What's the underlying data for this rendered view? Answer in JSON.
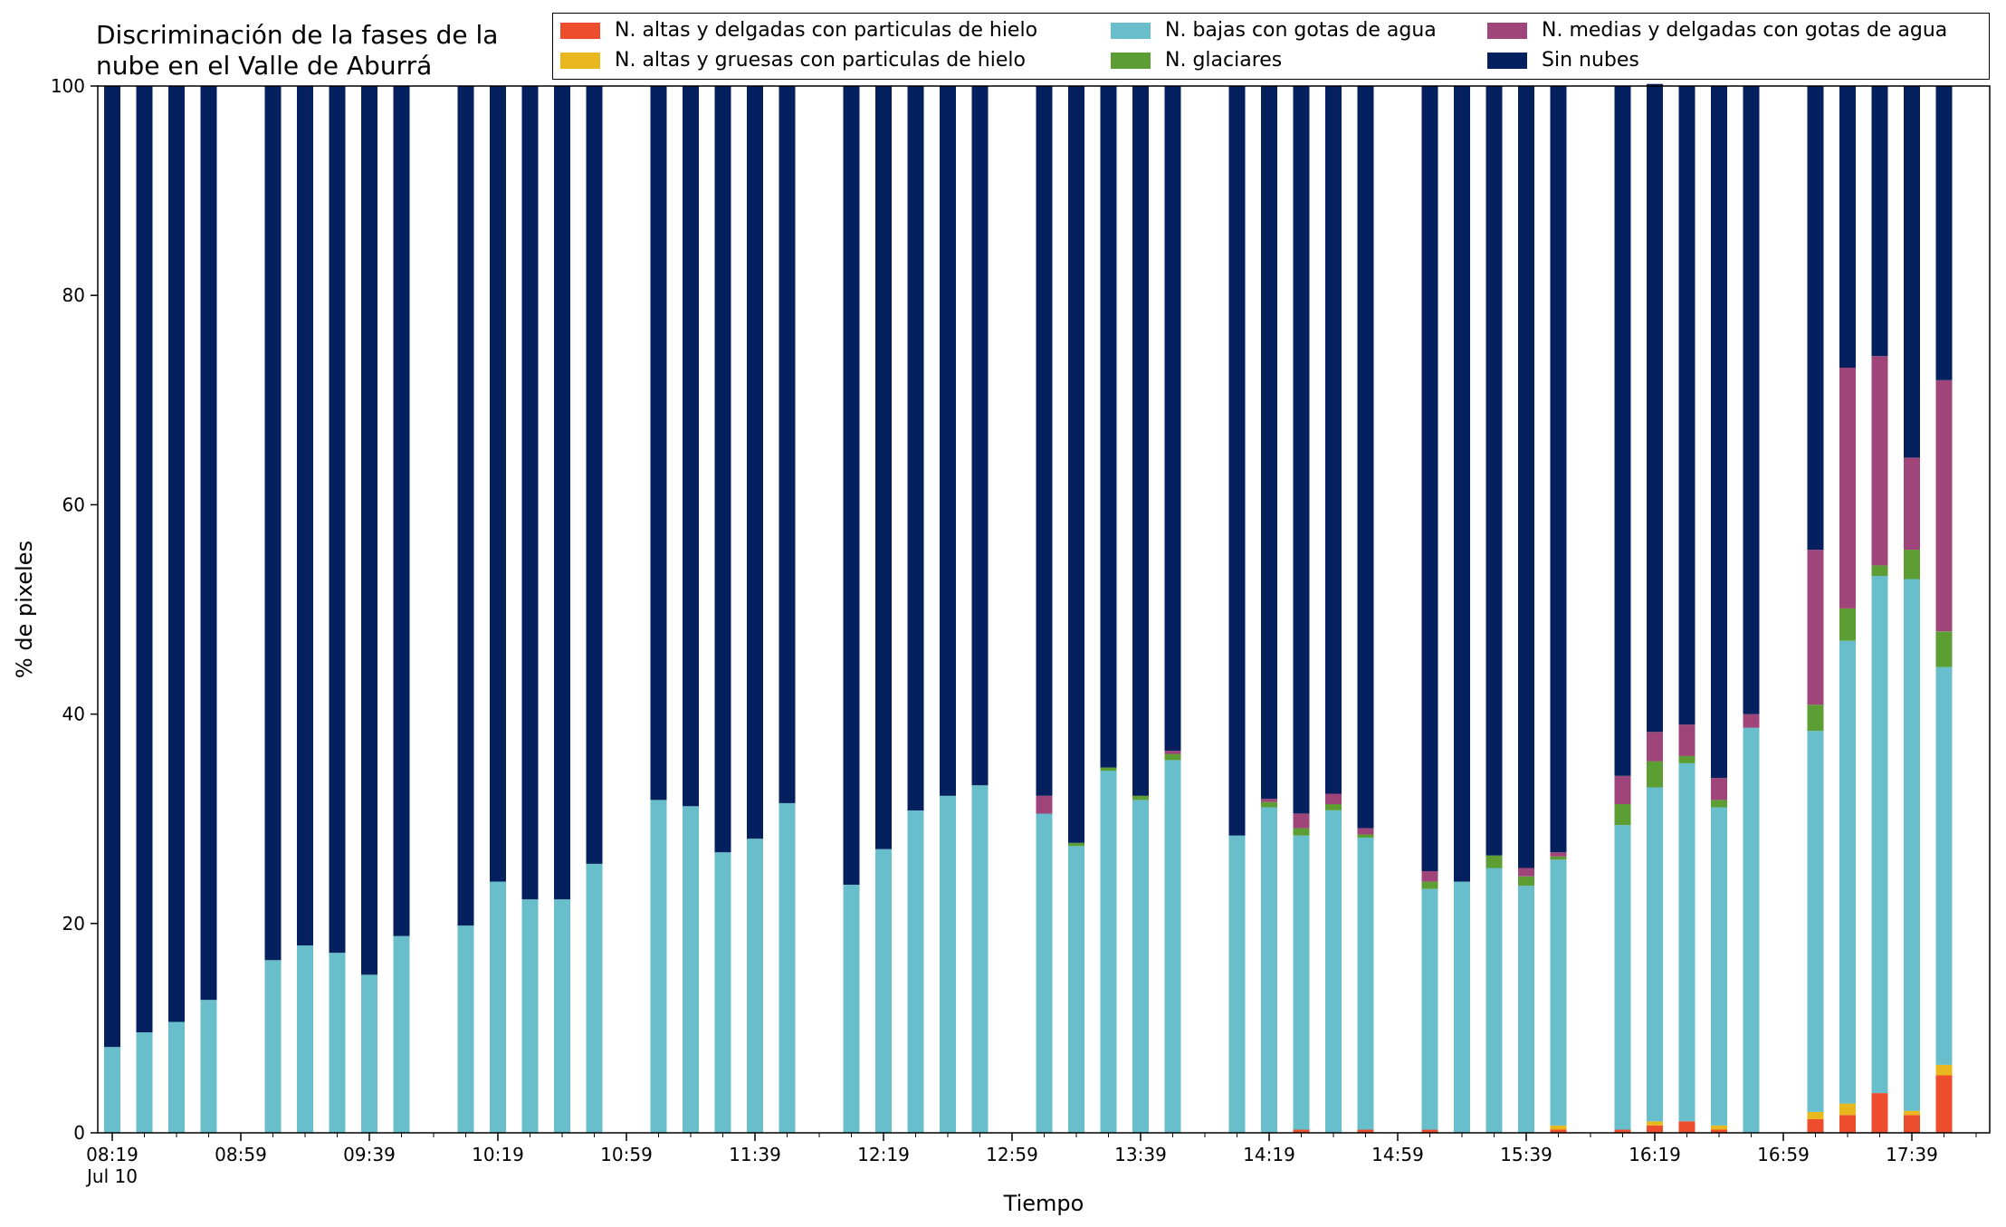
{
  "chart_data": {
    "type": "bar",
    "stacked": true,
    "title": "Discriminación de la fases de la\nnube en el Valle de Aburrá",
    "xlabel": "Tiempo",
    "ylabel": "% de pixeles",
    "ylim": [
      0,
      100
    ],
    "yticks": [
      "0",
      "20",
      "40",
      "60",
      "80",
      "100"
    ],
    "xtick_labels": [
      "08:19",
      "08:59",
      "09:39",
      "10:19",
      "10:59",
      "11:39",
      "12:19",
      "12:59",
      "13:39",
      "14:19",
      "14:59",
      "15:39",
      "16:19",
      "16:59",
      "17:39"
    ],
    "xtick_sublabel": "Jul 10",
    "legend_position": "top-right",
    "grid": false,
    "x": [
      "08:19",
      "08:29",
      "08:39",
      "08:49",
      "08:59",
      "09:09",
      "09:19",
      "09:29",
      "09:39",
      "09:49",
      "09:59",
      "10:09",
      "10:19",
      "10:29",
      "10:39",
      "10:49",
      "10:59",
      "11:09",
      "11:19",
      "11:29",
      "11:39",
      "11:49",
      "11:59",
      "12:09",
      "12:19",
      "12:29",
      "12:39",
      "12:49",
      "12:59",
      "13:09",
      "13:19",
      "13:29",
      "13:39",
      "13:49",
      "13:59",
      "14:09",
      "14:19",
      "14:29",
      "14:39",
      "14:49",
      "14:59",
      "15:09",
      "15:19",
      "15:29",
      "15:39",
      "15:49",
      "15:59",
      "16:09",
      "16:19",
      "16:29",
      "16:39",
      "16:49",
      "16:59",
      "17:09",
      "17:19",
      "17:29",
      "17:39",
      "17:49"
    ],
    "series": [
      {
        "name": "N. altas y delgadas con particulas de hielo",
        "color": "#ee4d2d",
        "values": [
          0,
          0,
          0,
          0,
          null,
          0,
          0,
          0,
          0,
          0,
          null,
          0,
          0,
          0,
          0,
          0,
          null,
          0,
          0,
          0,
          0,
          0,
          null,
          0,
          0,
          0,
          0,
          0,
          null,
          0,
          0,
          0,
          0,
          0,
          null,
          0,
          0,
          0.3,
          0,
          0.3,
          null,
          0.3,
          0,
          0,
          0,
          0.3,
          null,
          0.3,
          0.7,
          1.1,
          0.3,
          0,
          null,
          1.3,
          1.7,
          3.8,
          1.7,
          5.5
        ]
      },
      {
        "name": "N. altas y gruesas con particulas de hielo",
        "color": "#e8b81e",
        "values": [
          0,
          0,
          0,
          0,
          null,
          0,
          0,
          0,
          0,
          0,
          null,
          0,
          0,
          0,
          0,
          0,
          null,
          0,
          0,
          0,
          0,
          0,
          null,
          0,
          0,
          0,
          0,
          0,
          null,
          0,
          0,
          0,
          0,
          0,
          null,
          0,
          0,
          0,
          0,
          0,
          null,
          0,
          0,
          0,
          0,
          0.4,
          null,
          0,
          0.4,
          0,
          0.4,
          0,
          null,
          0.7,
          1.1,
          0,
          0.4,
          1.0
        ]
      },
      {
        "name": "N. bajas con gotas de agua",
        "color": "#68bfcb",
        "values": [
          8.2,
          9.6,
          10.6,
          12.7,
          null,
          16.5,
          17.9,
          17.2,
          15.1,
          18.8,
          null,
          19.8,
          24.0,
          22.3,
          22.3,
          25.7,
          null,
          31.8,
          31.2,
          26.8,
          28.1,
          31.5,
          null,
          23.7,
          27.1,
          30.8,
          32.2,
          33.2,
          null,
          30.5,
          27.4,
          34.6,
          31.8,
          35.6,
          null,
          28.4,
          31.1,
          28.1,
          30.8,
          27.9,
          null,
          23.0,
          24.0,
          25.3,
          23.6,
          25.4,
          null,
          29.1,
          31.9,
          34.2,
          30.4,
          38.7,
          null,
          36.4,
          44.2,
          49.4,
          50.8,
          38.0
        ]
      },
      {
        "name": "N. glaciares",
        "color": "#5c9e34",
        "values": [
          0,
          0,
          0,
          0,
          null,
          0,
          0,
          0,
          0,
          0,
          null,
          0,
          0,
          0,
          0,
          0,
          null,
          0,
          0,
          0,
          0,
          0,
          null,
          0,
          0,
          0,
          0,
          0,
          null,
          0,
          0.3,
          0.3,
          0.4,
          0.6,
          null,
          0,
          0.5,
          0.7,
          0.6,
          0.3,
          null,
          0.7,
          0,
          1.2,
          0.9,
          0.3,
          null,
          2.0,
          2.5,
          0.7,
          0.7,
          0,
          null,
          2.5,
          3.1,
          1.0,
          2.8,
          3.4
        ]
      },
      {
        "name": "N. medias y delgadas con gotas de agua",
        "color": "#a0457a",
        "values": [
          0,
          0,
          0,
          0,
          null,
          0,
          0,
          0,
          0,
          0,
          null,
          0,
          0,
          0,
          0,
          0,
          null,
          0,
          0,
          0,
          0,
          0,
          null,
          0,
          0,
          0,
          0,
          0,
          null,
          1.7,
          0,
          0,
          0,
          0.3,
          null,
          0,
          0.3,
          1.4,
          1.0,
          0.6,
          null,
          1.0,
          0,
          0,
          0.8,
          0.4,
          null,
          2.7,
          2.8,
          3.0,
          2.1,
          1.3,
          null,
          14.8,
          23.0,
          20.0,
          8.8,
          24.0
        ]
      },
      {
        "name": "Sin nubes",
        "color": "#04205f",
        "values": [
          91.8,
          90.4,
          89.4,
          87.3,
          null,
          83.5,
          82.1,
          82.8,
          84.9,
          81.2,
          null,
          80.2,
          76.0,
          77.7,
          77.7,
          74.3,
          null,
          68.2,
          68.8,
          73.2,
          71.9,
          68.5,
          null,
          76.3,
          72.9,
          69.2,
          67.8,
          66.8,
          null,
          67.8,
          72.3,
          65.1,
          67.8,
          63.5,
          null,
          71.6,
          68.1,
          69.5,
          67.6,
          70.9,
          null,
          75.0,
          76.0,
          73.5,
          74.7,
          73.2,
          null,
          65.9,
          61.9,
          61.0,
          66.1,
          60.0,
          null,
          44.3,
          26.9,
          25.8,
          35.5,
          28.1
        ]
      }
    ]
  }
}
